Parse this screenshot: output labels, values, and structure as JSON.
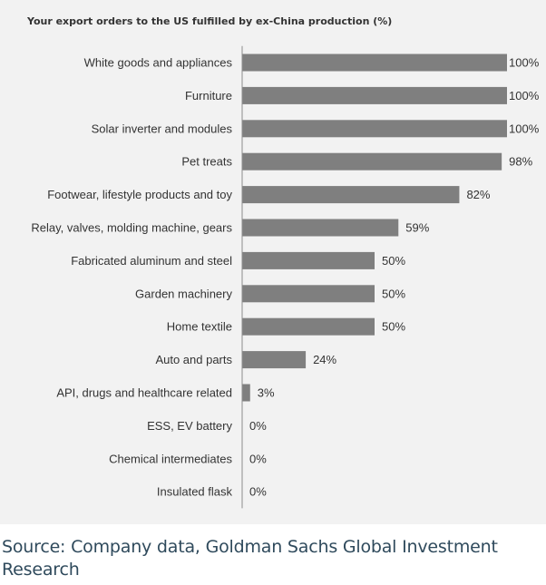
{
  "chart_data": {
    "type": "bar",
    "orientation": "horizontal",
    "title": "Your export orders to the US fulfilled by ex-China production (%)",
    "xlabel": "",
    "ylabel": "",
    "xlim": [
      0,
      100
    ],
    "grid": false,
    "legend": "none",
    "bar_color": "#7f7f7f",
    "categories": [
      "White goods and appliances",
      "Furniture",
      "Solar inverter and modules",
      "Pet treats",
      "Footwear, lifestyle products and toy",
      "Relay, valves, molding machine, gears",
      "Fabricated aluminum and steel",
      "Garden machinery",
      "Home textile",
      "Auto and parts",
      "API, drugs and healthcare related",
      "ESS, EV battery",
      "Chemical intermediates",
      "Insulated flask"
    ],
    "values": [
      100,
      100,
      100,
      98,
      82,
      59,
      50,
      50,
      50,
      24,
      3,
      0,
      0,
      0
    ],
    "value_labels": [
      "100%",
      "100%",
      "100%",
      "98%",
      "82%",
      "59%",
      "50%",
      "50%",
      "50%",
      "24%",
      "3%",
      "0%",
      "0%",
      "0%"
    ]
  },
  "source_note": "Source: Company data, Goldman Sachs Global Investment Research"
}
